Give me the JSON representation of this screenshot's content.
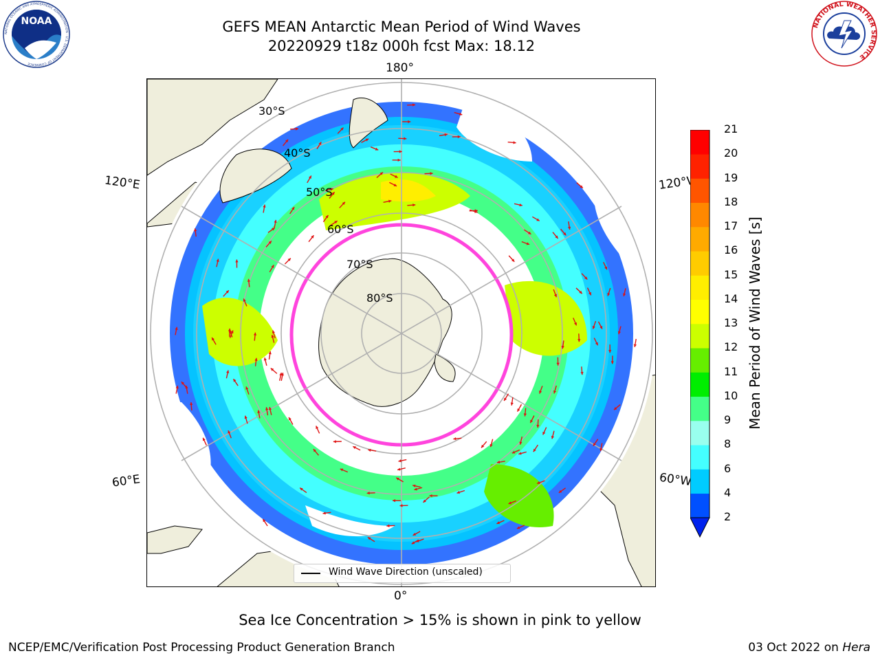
{
  "header": {
    "title_line1": "GEFS MEAN Antarctic Mean Period of Wind Waves",
    "title_line2": "20220929 t18z 000h fcst   Max: 18.12"
  },
  "logos": {
    "left": "NOAA",
    "left_ring": "NATIONAL OCEANIC AND ATMOSPHERIC ADMINISTRATION · U.S. DEPARTMENT OF COMMERCE",
    "right_ring": "NATIONAL WEATHER SERVICE"
  },
  "map": {
    "lon_labels": {
      "top": "180°",
      "bottom": "0°",
      "left_upper": "120°E",
      "right_upper": "120°W",
      "left_lower": "60°E",
      "right_lower": "60°W"
    },
    "lat_labels": [
      "30°S",
      "40°S",
      "50°S",
      "60°S",
      "70°S",
      "80°S"
    ],
    "legend": "Wind Wave Direction (unscaled)",
    "colors": {
      "land": "#efeedc",
      "ice": "#ff44dd",
      "arrow": "#e01010",
      "grid": "#b0b0b0"
    }
  },
  "colorbar": {
    "label": "Mean Period of Wind Waves [s]",
    "ticks": [
      "2",
      "4",
      "6",
      "8",
      "9",
      "10",
      "11",
      "12",
      "13",
      "14",
      "15",
      "16",
      "17",
      "18",
      "19",
      "20",
      "21"
    ],
    "colors": [
      "#0050ff",
      "#00ccff",
      "#44ffff",
      "#99ffee",
      "#44ff88",
      "#00ee00",
      "#66ee00",
      "#ccff00",
      "#ffff00",
      "#ffee00",
      "#ffcc00",
      "#ffaa00",
      "#ff8800",
      "#ff5500",
      "#ff2200",
      "#ff0000"
    ],
    "under_color": "#0022ee"
  },
  "footer": {
    "note": "Sea Ice Concentration > 15% is shown in pink to yellow",
    "left": "NCEP/EMC/Verification Post Processing Product Generation Branch",
    "right_date": "03 Oct 2022 on",
    "right_host": "Hera"
  }
}
